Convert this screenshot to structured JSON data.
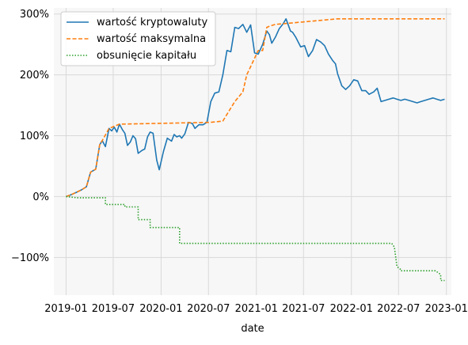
{
  "chart_data": {
    "type": "line",
    "xlabel": "date",
    "ylabel": "",
    "title": "",
    "x_ticks": [
      "2019-01",
      "2019-07",
      "2020-01",
      "2020-07",
      "2021-01",
      "2021-07",
      "2022-01",
      "2022-07",
      "2023-01"
    ],
    "y_ticks": [
      "300%",
      "200%",
      "100%",
      "0%",
      "−100%"
    ],
    "y_tick_values": [
      300,
      200,
      100,
      0,
      -100
    ],
    "x_range": [
      "2018-11-15",
      "2023-01-20"
    ],
    "y_range": [
      -162,
      310
    ],
    "y_unit": "%",
    "grid": true,
    "legend_position": "top-left",
    "series": [
      {
        "name": "wartość kryptowaluty",
        "color": "#1f77b4",
        "style": "solid",
        "x": [
          "2019-01-01",
          "2019-01-20",
          "2019-02-10",
          "2019-03-01",
          "2019-03-20",
          "2019-04-05",
          "2019-04-25",
          "2019-05-10",
          "2019-05-20",
          "2019-06-01",
          "2019-06-15",
          "2019-06-25",
          "2019-07-05",
          "2019-07-15",
          "2019-07-25",
          "2019-08-05",
          "2019-08-15",
          "2019-08-25",
          "2019-09-05",
          "2019-09-15",
          "2019-09-25",
          "2019-10-05",
          "2019-10-20",
          "2019-10-30",
          "2019-11-10",
          "2019-11-20",
          "2019-12-01",
          "2019-12-15",
          "2019-12-25",
          "2020-01-10",
          "2020-01-25",
          "2020-02-10",
          "2020-02-20",
          "2020-03-01",
          "2020-03-12",
          "2020-03-20",
          "2020-04-01",
          "2020-04-15",
          "2020-04-30",
          "2020-05-10",
          "2020-05-25",
          "2020-06-10",
          "2020-06-25",
          "2020-07-10",
          "2020-07-25",
          "2020-08-10",
          "2020-08-25",
          "2020-09-10",
          "2020-09-25",
          "2020-10-10",
          "2020-10-25",
          "2020-11-10",
          "2020-11-25",
          "2020-12-10",
          "2020-12-25",
          "2021-01-08",
          "2021-01-25",
          "2021-02-10",
          "2021-02-20",
          "2021-03-01",
          "2021-03-15",
          "2021-03-30",
          "2021-04-14",
          "2021-04-25",
          "2021-05-12",
          "2021-05-20",
          "2021-06-01",
          "2021-06-20",
          "2021-07-05",
          "2021-07-20",
          "2021-08-05",
          "2021-08-20",
          "2021-09-05",
          "2021-09-20",
          "2021-10-05",
          "2021-10-20",
          "2021-11-01",
          "2021-11-09",
          "2021-11-25",
          "2021-12-10",
          "2021-12-25",
          "2022-01-10",
          "2022-01-25",
          "2022-02-10",
          "2022-02-25",
          "2022-03-10",
          "2022-03-28",
          "2022-04-10",
          "2022-04-25",
          "2022-05-10",
          "2022-05-25",
          "2022-06-10",
          "2022-06-25",
          "2022-07-10",
          "2022-07-25",
          "2022-08-10",
          "2022-08-25",
          "2022-09-10",
          "2022-09-25",
          "2022-10-10",
          "2022-10-25",
          "2022-11-10",
          "2022-11-25",
          "2022-12-10",
          "2022-12-25"
        ],
        "y": [
          0,
          3,
          7,
          11,
          16,
          40,
          45,
          85,
          92,
          82,
          112,
          108,
          114,
          106,
          119,
          110,
          104,
          84,
          90,
          100,
          95,
          71,
          76,
          78,
          98,
          106,
          104,
          60,
          44,
          74,
          96,
          91,
          102,
          98,
          100,
          96,
          103,
          122,
          120,
          112,
          118,
          118,
          122,
          156,
          170,
          172,
          200,
          240,
          238,
          278,
          276,
          283,
          270,
          282,
          236,
          234,
          250,
          272,
          266,
          252,
          262,
          276,
          284,
          292,
          272,
          270,
          262,
          246,
          248,
          230,
          240,
          258,
          254,
          248,
          234,
          224,
          218,
          202,
          182,
          176,
          182,
          192,
          190,
          174,
          174,
          168,
          172,
          178,
          156,
          158,
          160,
          162,
          160,
          158,
          160,
          158,
          156,
          154,
          156,
          158,
          160,
          162,
          160,
          158,
          160
        ]
      },
      {
        "name": "wartość maksymalna",
        "color": "#ff7f0e",
        "style": "dashed",
        "x": [
          "2019-01-01",
          "2019-01-20",
          "2019-02-10",
          "2019-03-01",
          "2019-03-20",
          "2019-04-05",
          "2019-04-25",
          "2019-05-10",
          "2019-05-20",
          "2019-06-15",
          "2019-07-25",
          "2020-07-10",
          "2020-08-25",
          "2020-10-10",
          "2020-11-10",
          "2020-11-25",
          "2021-01-08",
          "2021-01-25",
          "2021-02-10",
          "2021-02-20",
          "2021-03-15",
          "2021-04-14",
          "2021-11-09",
          "2022-12-25"
        ],
        "y": [
          0,
          3,
          7,
          11,
          16,
          40,
          45,
          85,
          92,
          112,
          119,
          122,
          124,
          156,
          172,
          200,
          240,
          240,
          278,
          280,
          283,
          284,
          292,
          292
        ]
      },
      {
        "name": "obsunięcie kapitału",
        "color": "#2ca02c",
        "style": "dotted",
        "x": [
          "2019-01-01",
          "2019-02-10",
          "2019-06-01",
          "2019-06-01",
          "2019-08-15",
          "2019-08-15",
          "2019-10-05",
          "2019-10-05",
          "2019-11-20",
          "2019-11-20",
          "2020-03-12",
          "2020-03-12",
          "2022-06-05",
          "2022-06-15",
          "2022-06-25",
          "2022-07-10",
          "2022-07-10",
          "2022-11-20",
          "2022-12-10",
          "2022-12-10",
          "2022-12-25"
        ],
        "y": [
          0,
          -2,
          -2,
          -13,
          -13,
          -17,
          -17,
          -38,
          -38,
          -51,
          -51,
          -77,
          -77,
          -83,
          -115,
          -120,
          -122,
          -122,
          -128,
          -138,
          -138
        ]
      }
    ]
  }
}
